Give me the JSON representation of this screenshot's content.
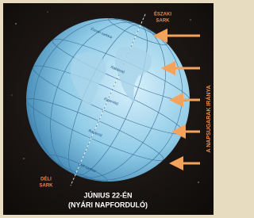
{
  "north_pole": [
    "ÉSZAKI",
    "SARK"
  ],
  "south_pole": [
    "DÉLI",
    "SARK"
  ],
  "rays_label": "A NAPSUGARAK IRÁNYA",
  "caption": [
    "JÚNIUS 22-ÉN",
    "(NYÁRI NAPFORDULÓ)"
  ],
  "globe_lines": [
    "Északi sarkkör",
    "Ráktérítő",
    "Egyenlítő",
    "Baktérítő",
    "Déli sarkkör"
  ]
}
